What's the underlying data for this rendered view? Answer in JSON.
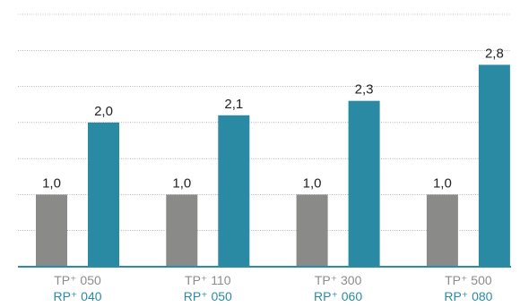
{
  "chart_data": {
    "type": "bar",
    "categories": [
      {
        "top": "TP⁺ 050",
        "bottom": "RP⁺ 040"
      },
      {
        "top": "TP⁺ 110",
        "bottom": "RP⁺ 050"
      },
      {
        "top": "TP⁺ 300",
        "bottom": "RP⁺ 060"
      },
      {
        "top": "TP⁺ 500",
        "bottom": "RP⁺ 080"
      }
    ],
    "series": [
      {
        "values": [
          1.0,
          1.0,
          1.0,
          1.0
        ],
        "labels": [
          "1,0",
          "1,0",
          "1,0",
          "1,0"
        ],
        "color": "#8a8a88"
      },
      {
        "values": [
          2.0,
          2.1,
          2.3,
          2.8
        ],
        "labels": [
          "2,0",
          "2,1",
          "2,3",
          "2,8"
        ],
        "color": "#2a8aa3"
      }
    ],
    "ylim": [
      0,
      3.5
    ],
    "grid": true,
    "axis_color": "#2f8aa3",
    "top_label_color": "#8c8c8c",
    "bottom_label_color": "#2b8ba4"
  }
}
